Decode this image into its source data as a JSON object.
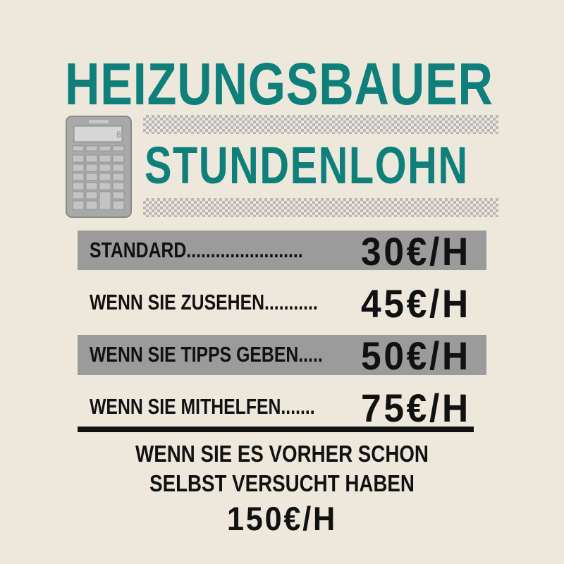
{
  "title": "HEIZUNGSBAUER",
  "subtitle": "STUNDENLOHN",
  "calculator_icon": "calculator-icon",
  "colors": {
    "accent": "#0e7f7a",
    "background": "#ede8dc",
    "highlight_bar": "#9b9b9b",
    "text": "#111111"
  },
  "rates": [
    {
      "label": "STANDARD........................",
      "price": "30€/H",
      "highlighted": true
    },
    {
      "label": "WENN SIE ZUSEHEN...........",
      "price": "45€/H",
      "highlighted": false
    },
    {
      "label": "WENN SIE TIPPS GEBEN.....",
      "price": "50€/H",
      "highlighted": true
    },
    {
      "label": "WENN SIE MITHELFEN.......",
      "price": "75€/H",
      "highlighted": false
    }
  ],
  "footer": {
    "line1": "WENN SIE ES VORHER SCHON",
    "line2": "SELBST VERSUCHT HABEN",
    "price": "150€/H"
  }
}
